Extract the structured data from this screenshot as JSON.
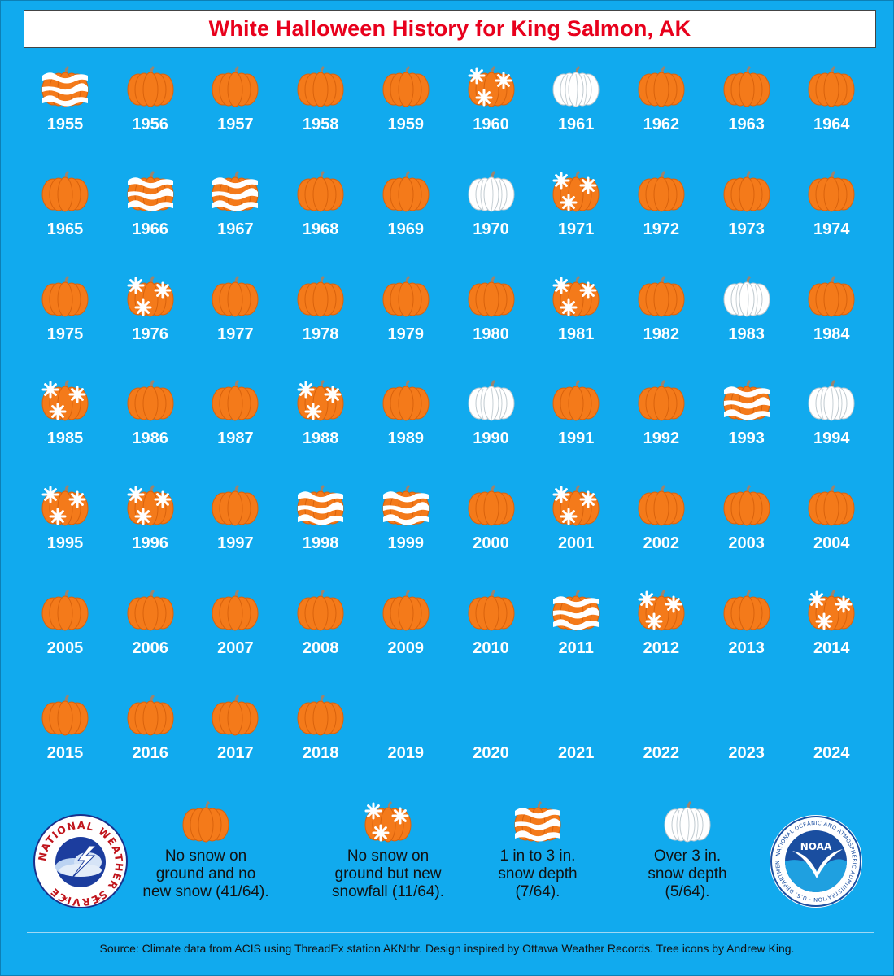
{
  "title": "White Halloween History for King Salmon, AK",
  "colors": {
    "background": "#11aaee",
    "pumpkin": "#f47a1a",
    "snow": "#ffffff",
    "title": "#e8001c"
  },
  "chart_data": {
    "type": "table",
    "title": "White Halloween History for King Salmon, AK",
    "categories": {
      "none": "No snow on ground and no new snow (41/64).",
      "snowfall": "No snow on ground but new snowfall (11/64).",
      "depth_1_3": "1 in to 3 in. snow depth (7/64).",
      "depth_over_3": "Over 3 in. snow depth (5/64)."
    },
    "years": [
      {
        "year": "1955",
        "category": "depth_1_3"
      },
      {
        "year": "1956",
        "category": "none"
      },
      {
        "year": "1957",
        "category": "none"
      },
      {
        "year": "1958",
        "category": "none"
      },
      {
        "year": "1959",
        "category": "none"
      },
      {
        "year": "1960",
        "category": "snowfall"
      },
      {
        "year": "1961",
        "category": "depth_over_3"
      },
      {
        "year": "1962",
        "category": "none"
      },
      {
        "year": "1963",
        "category": "none"
      },
      {
        "year": "1964",
        "category": "none"
      },
      {
        "year": "1965",
        "category": "none"
      },
      {
        "year": "1966",
        "category": "depth_1_3"
      },
      {
        "year": "1967",
        "category": "depth_1_3"
      },
      {
        "year": "1968",
        "category": "none"
      },
      {
        "year": "1969",
        "category": "none"
      },
      {
        "year": "1970",
        "category": "depth_over_3"
      },
      {
        "year": "1971",
        "category": "snowfall"
      },
      {
        "year": "1972",
        "category": "none"
      },
      {
        "year": "1973",
        "category": "none"
      },
      {
        "year": "1974",
        "category": "none"
      },
      {
        "year": "1975",
        "category": "none"
      },
      {
        "year": "1976",
        "category": "snowfall"
      },
      {
        "year": "1977",
        "category": "none"
      },
      {
        "year": "1978",
        "category": "none"
      },
      {
        "year": "1979",
        "category": "none"
      },
      {
        "year": "1980",
        "category": "none"
      },
      {
        "year": "1981",
        "category": "snowfall"
      },
      {
        "year": "1982",
        "category": "none"
      },
      {
        "year": "1983",
        "category": "depth_over_3"
      },
      {
        "year": "1984",
        "category": "none"
      },
      {
        "year": "1985",
        "category": "snowfall"
      },
      {
        "year": "1986",
        "category": "none"
      },
      {
        "year": "1987",
        "category": "none"
      },
      {
        "year": "1988",
        "category": "snowfall"
      },
      {
        "year": "1989",
        "category": "none"
      },
      {
        "year": "1990",
        "category": "depth_over_3"
      },
      {
        "year": "1991",
        "category": "none"
      },
      {
        "year": "1992",
        "category": "none"
      },
      {
        "year": "1993",
        "category": "depth_1_3"
      },
      {
        "year": "1994",
        "category": "depth_over_3"
      },
      {
        "year": "1995",
        "category": "snowfall"
      },
      {
        "year": "1996",
        "category": "snowfall"
      },
      {
        "year": "1997",
        "category": "none"
      },
      {
        "year": "1998",
        "category": "depth_1_3"
      },
      {
        "year": "1999",
        "category": "depth_1_3"
      },
      {
        "year": "2000",
        "category": "none"
      },
      {
        "year": "2001",
        "category": "snowfall"
      },
      {
        "year": "2002",
        "category": "none"
      },
      {
        "year": "2003",
        "category": "none"
      },
      {
        "year": "2004",
        "category": "none"
      },
      {
        "year": "2005",
        "category": "none"
      },
      {
        "year": "2006",
        "category": "none"
      },
      {
        "year": "2007",
        "category": "none"
      },
      {
        "year": "2008",
        "category": "none"
      },
      {
        "year": "2009",
        "category": "none"
      },
      {
        "year": "2010",
        "category": "none"
      },
      {
        "year": "2011",
        "category": "depth_1_3"
      },
      {
        "year": "2012",
        "category": "snowfall"
      },
      {
        "year": "2013",
        "category": "none"
      },
      {
        "year": "2014",
        "category": "snowfall"
      },
      {
        "year": "2015",
        "category": "none"
      },
      {
        "year": "2016",
        "category": "none"
      },
      {
        "year": "2017",
        "category": "none"
      },
      {
        "year": "2018",
        "category": "none"
      },
      {
        "year": "2019",
        "category": ""
      },
      {
        "year": "2020",
        "category": ""
      },
      {
        "year": "2021",
        "category": ""
      },
      {
        "year": "2022",
        "category": ""
      },
      {
        "year": "2023",
        "category": ""
      },
      {
        "year": "2024",
        "category": ""
      }
    ]
  },
  "legend": [
    {
      "category": "none",
      "lines": [
        "No snow on",
        "ground and no",
        "new snow (41/64)."
      ]
    },
    {
      "category": "snowfall",
      "lines": [
        "No snow on",
        "ground but new",
        "snowfall (11/64)."
      ]
    },
    {
      "category": "depth_1_3",
      "lines": [
        "1 in to 3 in.",
        "snow depth",
        "(7/64)."
      ]
    },
    {
      "category": "depth_over_3",
      "lines": [
        "Over 3 in.",
        "snow depth",
        "(5/64)."
      ]
    }
  ],
  "logos": {
    "nws_text": "NATIONAL WEATHER SERVICE",
    "noaa_text": "NOAA",
    "noaa_ring": "NATIONAL OCEANIC AND ATMOSPHERIC ADMINISTRATION · U.S. DEPARTMENT OF COMMERCE"
  },
  "source": "Source: Climate data from ACIS using ThreadEx station AKNthr. Design inspired by Ottawa Weather Records. Tree icons by Andrew King."
}
